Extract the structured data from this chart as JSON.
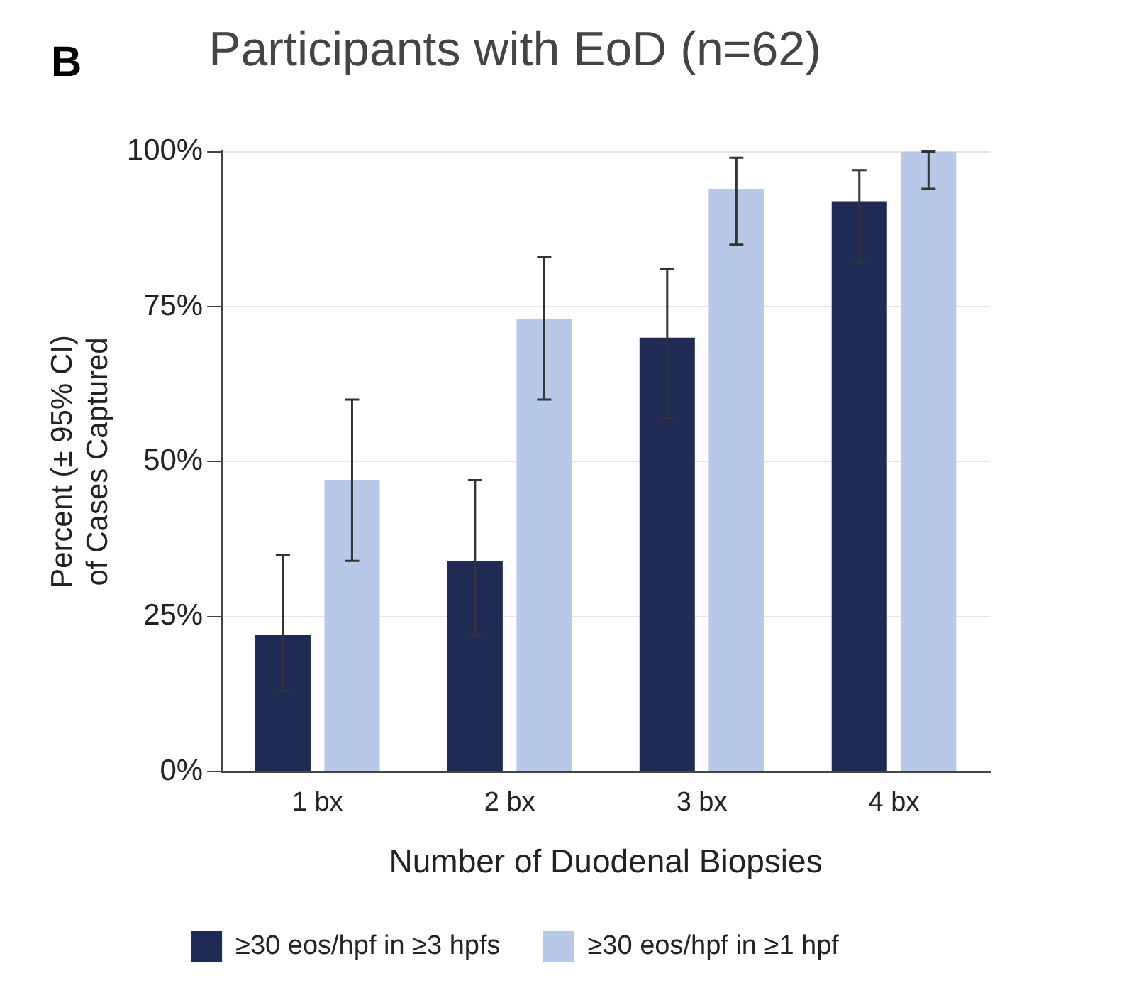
{
  "chart_data": {
    "type": "bar",
    "title": "Participants with EoD (n=62)",
    "xlabel": "Number of Duodenal Biopsies",
    "ylabel": "Percent (± 95% CI)\nof Cases Captured",
    "annotations": [
      "B"
    ],
    "categories": [
      "1 bx",
      "2 bx",
      "3 bx",
      "4 bx"
    ],
    "series": [
      {
        "name": "≥30 eos/hpf in ≥3 hpfs",
        "color": "#1f2b55",
        "values": [
          22,
          34,
          70,
          92
        ],
        "errors": [
          [
            13,
            35
          ],
          [
            22,
            47
          ],
          [
            57,
            81
          ],
          [
            82,
            97
          ]
        ]
      },
      {
        "name": "≥30 eos/hpf in ≥1 hpf",
        "color": "#b7c8e8",
        "values": [
          47,
          73,
          94,
          100
        ],
        "errors": [
          [
            34,
            60
          ],
          [
            60,
            83
          ],
          [
            85,
            99
          ],
          [
            94,
            100
          ]
        ]
      }
    ],
    "ylim": [
      0,
      100
    ],
    "yticks": [
      {
        "value": 0,
        "label": "0%"
      },
      {
        "value": 25,
        "label": "25%"
      },
      {
        "value": 50,
        "label": "50%"
      },
      {
        "value": 75,
        "label": "75%"
      },
      {
        "value": 100,
        "label": "100%"
      }
    ],
    "grid": "y",
    "legend": "bottom"
  }
}
